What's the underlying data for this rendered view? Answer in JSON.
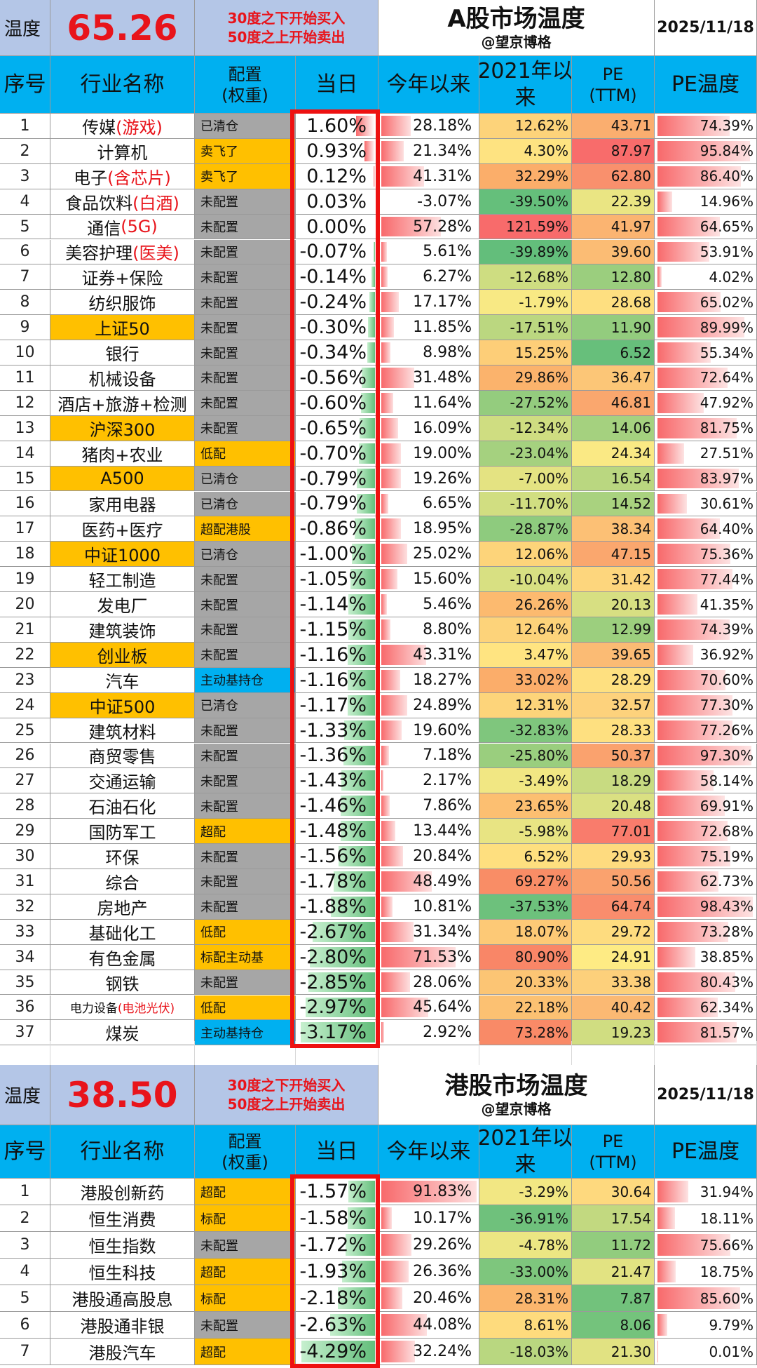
{
  "a_share": {
    "temp_label": "温度",
    "temp_value": "65.26",
    "rule_buy": "30度之下开始买入",
    "rule_sell": "50度之上开始卖出",
    "title": "A股市场温度",
    "author": "@望京博格",
    "date": "2025/11/18",
    "headers": {
      "idx": "序号",
      "name": "行业名称",
      "alloc_1": "配置",
      "alloc_2": "(权重)",
      "day": "当日",
      "ytd": "今年以来",
      "since2021_1": "2021年以",
      "since2021_2": "来",
      "pe_1": "PE",
      "pe_2": "(TTM)",
      "pe_temp": "PE温度"
    },
    "rows": [
      {
        "idx": "1",
        "name": "传媒",
        "name_red": "(游戏)",
        "hl": false,
        "alloc": "已清仓",
        "alloc_color": "gray",
        "day": "1.60%",
        "ytd": "28.18%",
        "since2021": "12.62%",
        "pe": "43.71",
        "pe_temp": "74.39%"
      },
      {
        "idx": "2",
        "name": "计算机",
        "name_red": "",
        "hl": false,
        "alloc": "卖飞了",
        "alloc_color": "orange",
        "day": "0.93%",
        "ytd": "21.34%",
        "since2021": "4.30%",
        "pe": "87.97",
        "pe_temp": "95.84%"
      },
      {
        "idx": "3",
        "name": "电子",
        "name_red": "(含芯片)",
        "hl": false,
        "alloc": "卖飞了",
        "alloc_color": "orange",
        "day": "0.12%",
        "ytd": "41.31%",
        "since2021": "32.29%",
        "pe": "62.80",
        "pe_temp": "86.40%"
      },
      {
        "idx": "4",
        "name": "食品饮料",
        "name_red": "(白酒)",
        "hl": false,
        "alloc": "未配置",
        "alloc_color": "gray",
        "day": "0.03%",
        "ytd": "-3.07%",
        "since2021": "-39.50%",
        "pe": "22.39",
        "pe_temp": "14.96%"
      },
      {
        "idx": "5",
        "name": "通信",
        "name_red": "(5G)",
        "hl": false,
        "alloc": "未配置",
        "alloc_color": "gray",
        "day": "0.00%",
        "ytd": "57.28%",
        "since2021": "121.59%",
        "pe": "41.97",
        "pe_temp": "64.65%"
      },
      {
        "idx": "6",
        "name": "美容护理",
        "name_red": "(医美)",
        "hl": false,
        "alloc": "未配置",
        "alloc_color": "gray",
        "day": "-0.07%",
        "ytd": "5.61%",
        "since2021": "-39.89%",
        "pe": "39.60",
        "pe_temp": "53.91%"
      },
      {
        "idx": "7",
        "name": "证券+保险",
        "name_red": "",
        "hl": false,
        "alloc": "未配置",
        "alloc_color": "gray",
        "day": "-0.14%",
        "ytd": "6.27%",
        "since2021": "-12.68%",
        "pe": "12.80",
        "pe_temp": "4.02%"
      },
      {
        "idx": "8",
        "name": "纺织服饰",
        "name_red": "",
        "hl": false,
        "alloc": "未配置",
        "alloc_color": "gray",
        "day": "-0.24%",
        "ytd": "17.17%",
        "since2021": "-1.79%",
        "pe": "28.68",
        "pe_temp": "65.02%"
      },
      {
        "idx": "9",
        "name": "上证50",
        "name_red": "",
        "hl": true,
        "alloc": "未配置",
        "alloc_color": "gray",
        "day": "-0.30%",
        "ytd": "11.85%",
        "since2021": "-17.51%",
        "pe": "11.90",
        "pe_temp": "89.99%"
      },
      {
        "idx": "10",
        "name": "银行",
        "name_red": "",
        "hl": false,
        "alloc": "未配置",
        "alloc_color": "gray",
        "day": "-0.34%",
        "ytd": "8.98%",
        "since2021": "15.25%",
        "pe": "6.52",
        "pe_temp": "55.34%"
      },
      {
        "idx": "11",
        "name": "机械设备",
        "name_red": "",
        "hl": false,
        "alloc": "未配置",
        "alloc_color": "gray",
        "day": "-0.56%",
        "ytd": "31.48%",
        "since2021": "29.86%",
        "pe": "36.47",
        "pe_temp": "72.64%"
      },
      {
        "idx": "12",
        "name": "酒店+旅游+检测",
        "name_red": "",
        "hl": false,
        "alloc": "未配置",
        "alloc_color": "gray",
        "day": "-0.60%",
        "ytd": "11.64%",
        "since2021": "-27.52%",
        "pe": "46.81",
        "pe_temp": "47.92%"
      },
      {
        "idx": "13",
        "name": "沪深300",
        "name_red": "",
        "hl": true,
        "alloc": "未配置",
        "alloc_color": "gray",
        "day": "-0.65%",
        "ytd": "16.09%",
        "since2021": "-12.34%",
        "pe": "14.06",
        "pe_temp": "81.75%"
      },
      {
        "idx": "14",
        "name": "猪肉+农业",
        "name_red": "",
        "hl": false,
        "alloc": "低配",
        "alloc_color": "orange",
        "day": "-0.70%",
        "ytd": "19.00%",
        "since2021": "-23.04%",
        "pe": "24.34",
        "pe_temp": "27.51%"
      },
      {
        "idx": "15",
        "name": "A500",
        "name_red": "",
        "hl": true,
        "alloc": "已清仓",
        "alloc_color": "gray",
        "day": "-0.79%",
        "ytd": "19.26%",
        "since2021": "-7.00%",
        "pe": "16.54",
        "pe_temp": "83.97%"
      },
      {
        "idx": "16",
        "name": "家用电器",
        "name_red": "",
        "hl": false,
        "alloc": "已清仓",
        "alloc_color": "gray",
        "day": "-0.79%",
        "ytd": "6.65%",
        "since2021": "-11.70%",
        "pe": "14.52",
        "pe_temp": "30.61%"
      },
      {
        "idx": "17",
        "name": "医药+医疗",
        "name_red": "",
        "hl": false,
        "alloc": "超配港股",
        "alloc_color": "orange",
        "day": "-0.86%",
        "ytd": "18.95%",
        "since2021": "-28.87%",
        "pe": "38.34",
        "pe_temp": "64.40%"
      },
      {
        "idx": "18",
        "name": "中证1000",
        "name_red": "",
        "hl": true,
        "alloc": "已清仓",
        "alloc_color": "gray",
        "day": "-1.00%",
        "ytd": "25.02%",
        "since2021": "12.06%",
        "pe": "47.15",
        "pe_temp": "75.36%"
      },
      {
        "idx": "19",
        "name": "轻工制造",
        "name_red": "",
        "hl": false,
        "alloc": "未配置",
        "alloc_color": "gray",
        "day": "-1.05%",
        "ytd": "15.60%",
        "since2021": "-10.04%",
        "pe": "31.42",
        "pe_temp": "77.44%"
      },
      {
        "idx": "20",
        "name": "发电厂",
        "name_red": "",
        "hl": false,
        "alloc": "未配置",
        "alloc_color": "gray",
        "day": "-1.14%",
        "ytd": "5.46%",
        "since2021": "26.26%",
        "pe": "20.13",
        "pe_temp": "41.35%"
      },
      {
        "idx": "21",
        "name": "建筑装饰",
        "name_red": "",
        "hl": false,
        "alloc": "未配置",
        "alloc_color": "gray",
        "day": "-1.15%",
        "ytd": "8.80%",
        "since2021": "12.64%",
        "pe": "12.99",
        "pe_temp": "74.39%"
      },
      {
        "idx": "22",
        "name": "创业板",
        "name_red": "",
        "hl": true,
        "alloc": "未配置",
        "alloc_color": "gray",
        "day": "-1.16%",
        "ytd": "43.31%",
        "since2021": "3.47%",
        "pe": "39.65",
        "pe_temp": "36.92%"
      },
      {
        "idx": "23",
        "name": "汽车",
        "name_red": "",
        "hl": false,
        "alloc": "主动基持仓",
        "alloc_color": "blue",
        "day": "-1.16%",
        "ytd": "18.27%",
        "since2021": "33.02%",
        "pe": "28.29",
        "pe_temp": "70.60%"
      },
      {
        "idx": "24",
        "name": "中证500",
        "name_red": "",
        "hl": true,
        "alloc": "已清仓",
        "alloc_color": "gray",
        "day": "-1.17%",
        "ytd": "24.89%",
        "since2021": "12.31%",
        "pe": "32.57",
        "pe_temp": "77.30%"
      },
      {
        "idx": "25",
        "name": "建筑材料",
        "name_red": "",
        "hl": false,
        "alloc": "未配置",
        "alloc_color": "gray",
        "day": "-1.33%",
        "ytd": "19.60%",
        "since2021": "-32.83%",
        "pe": "28.33",
        "pe_temp": "77.26%"
      },
      {
        "idx": "26",
        "name": "商贸零售",
        "name_red": "",
        "hl": false,
        "alloc": "未配置",
        "alloc_color": "gray",
        "day": "-1.36%",
        "ytd": "7.18%",
        "since2021": "-25.80%",
        "pe": "50.37",
        "pe_temp": "97.30%"
      },
      {
        "idx": "27",
        "name": "交通运输",
        "name_red": "",
        "hl": false,
        "alloc": "未配置",
        "alloc_color": "gray",
        "day": "-1.43%",
        "ytd": "2.17%",
        "since2021": "-3.49%",
        "pe": "18.29",
        "pe_temp": "58.14%"
      },
      {
        "idx": "28",
        "name": "石油石化",
        "name_red": "",
        "hl": false,
        "alloc": "未配置",
        "alloc_color": "gray",
        "day": "-1.46%",
        "ytd": "7.86%",
        "since2021": "23.65%",
        "pe": "20.48",
        "pe_temp": "69.91%"
      },
      {
        "idx": "29",
        "name": "国防军工",
        "name_red": "",
        "hl": false,
        "alloc": "超配",
        "alloc_color": "orange",
        "day": "-1.48%",
        "ytd": "13.44%",
        "since2021": "-5.98%",
        "pe": "77.01",
        "pe_temp": "72.68%"
      },
      {
        "idx": "30",
        "name": "环保",
        "name_red": "",
        "hl": false,
        "alloc": "未配置",
        "alloc_color": "gray",
        "day": "-1.56%",
        "ytd": "20.84%",
        "since2021": "6.52%",
        "pe": "29.93",
        "pe_temp": "75.19%"
      },
      {
        "idx": "31",
        "name": "综合",
        "name_red": "",
        "hl": false,
        "alloc": "未配置",
        "alloc_color": "gray",
        "day": "-1.78%",
        "ytd": "48.49%",
        "since2021": "69.27%",
        "pe": "50.56",
        "pe_temp": "62.73%"
      },
      {
        "idx": "32",
        "name": "房地产",
        "name_red": "",
        "hl": false,
        "alloc": "未配置",
        "alloc_color": "gray",
        "day": "-1.88%",
        "ytd": "10.81%",
        "since2021": "-37.53%",
        "pe": "64.74",
        "pe_temp": "98.43%"
      },
      {
        "idx": "33",
        "name": "基础化工",
        "name_red": "",
        "hl": false,
        "alloc": "低配",
        "alloc_color": "orange",
        "day": "-2.67%",
        "ytd": "31.34%",
        "since2021": "18.07%",
        "pe": "29.72",
        "pe_temp": "73.28%"
      },
      {
        "idx": "34",
        "name": "有色金属",
        "name_red": "",
        "hl": false,
        "alloc": "标配主动基",
        "alloc_color": "orange",
        "day": "-2.80%",
        "ytd": "71.53%",
        "since2021": "80.90%",
        "pe": "24.91",
        "pe_temp": "38.85%"
      },
      {
        "idx": "35",
        "name": "钢铁",
        "name_red": "",
        "hl": false,
        "alloc": "未配置",
        "alloc_color": "gray",
        "day": "-2.85%",
        "ytd": "28.06%",
        "since2021": "20.33%",
        "pe": "33.38",
        "pe_temp": "80.43%"
      },
      {
        "idx": "36",
        "name": "电力设备",
        "name_red": "(电池光伏)",
        "hl": false,
        "small": true,
        "alloc": "低配",
        "alloc_color": "orange",
        "day": "-2.97%",
        "ytd": "45.64%",
        "since2021": "22.18%",
        "pe": "40.42",
        "pe_temp": "62.34%"
      },
      {
        "idx": "37",
        "name": "煤炭",
        "name_red": "",
        "hl": false,
        "alloc": "主动基持仓",
        "alloc_color": "blue",
        "day": "-3.17%",
        "ytd": "2.92%",
        "since2021": "73.28%",
        "pe": "19.23",
        "pe_temp": "81.57%"
      }
    ]
  },
  "hk_share": {
    "temp_label": "温度",
    "temp_value": "38.50",
    "rule_buy": "30度之下开始买入",
    "rule_sell": "50度之上开始卖出",
    "title": "港股市场温度",
    "author": "@望京博格",
    "date": "2025/11/18",
    "headers": {
      "idx": "序号",
      "name": "行业名称",
      "alloc_1": "配置",
      "alloc_2": "(权重)",
      "day": "当日",
      "ytd": "今年以来",
      "since2021_1": "2021年以",
      "since2021_2": "来",
      "pe_1": "PE",
      "pe_2": "(TTM)",
      "pe_temp": "PE温度"
    },
    "rows": [
      {
        "idx": "1",
        "name": "港股创新药",
        "alloc": "超配",
        "alloc_color": "orange",
        "day": "-1.57%",
        "ytd": "91.83%",
        "since2021": "-3.29%",
        "pe": "30.64",
        "pe_temp": "31.94%"
      },
      {
        "idx": "2",
        "name": "恒生消费",
        "alloc": "标配",
        "alloc_color": "orange",
        "day": "-1.58%",
        "ytd": "10.17%",
        "since2021": "-36.91%",
        "pe": "17.54",
        "pe_temp": "18.11%"
      },
      {
        "idx": "3",
        "name": "恒生指数",
        "alloc": "未配置",
        "alloc_color": "gray",
        "day": "-1.72%",
        "ytd": "29.26%",
        "since2021": "-4.78%",
        "pe": "11.72",
        "pe_temp": "75.66%"
      },
      {
        "idx": "4",
        "name": "恒生科技",
        "alloc": "超配",
        "alloc_color": "orange",
        "day": "-1.93%",
        "ytd": "26.36%",
        "since2021": "-33.00%",
        "pe": "21.47",
        "pe_temp": "18.75%"
      },
      {
        "idx": "5",
        "name": "港股通高股息",
        "alloc": "标配",
        "alloc_color": "orange",
        "day": "-2.18%",
        "ytd": "20.46%",
        "since2021": "28.31%",
        "pe": "7.87",
        "pe_temp": "85.60%"
      },
      {
        "idx": "6",
        "name": "港股通非银",
        "alloc": "未配置",
        "alloc_color": "gray",
        "day": "-2.63%",
        "ytd": "44.08%",
        "since2021": "8.61%",
        "pe": "8.06",
        "pe_temp": "9.79%"
      },
      {
        "idx": "7",
        "name": "港股汽车",
        "alloc": "超配",
        "alloc_color": "orange",
        "day": "-4.29%",
        "ytd": "32.24%",
        "since2021": "-18.03%",
        "pe": "21.30",
        "pe_temp": "0.01%"
      }
    ]
  },
  "colors": {
    "header_blue": "#00b0f0",
    "temp_bg": "#b4c6e7",
    "temp_red": "#e8141b",
    "alloc_gray": "#a6a6a6",
    "alloc_orange": "#ffc000",
    "alloc_blue": "#00b0f0",
    "box_red": "#ee1111"
  }
}
